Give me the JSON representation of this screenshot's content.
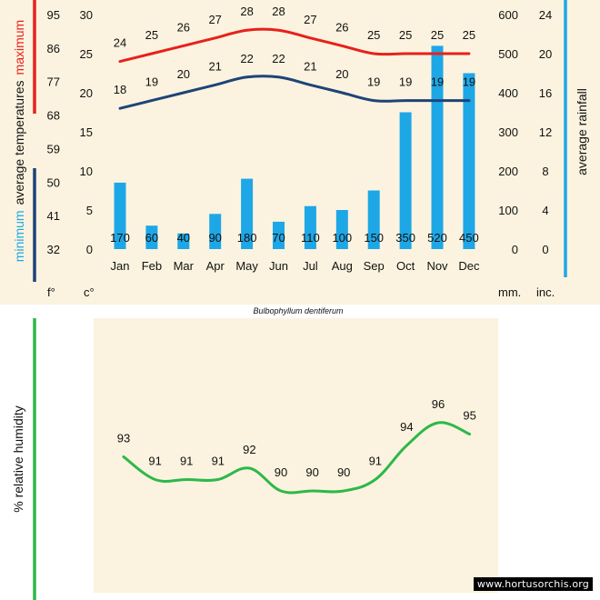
{
  "species": "Bulbophyllum dentiferum",
  "watermark": "www.hortusorchis.org",
  "colors": {
    "background": "#fbf3df",
    "max_line": "#e8201c",
    "min_line": "#1e4378",
    "rainfall_bar": "#1ea7e6",
    "rain_axis_bar": "#1ea7e6",
    "humidity_line": "#2db84a",
    "humidity_axis_bar": "#2db84a"
  },
  "chart_data": [
    {
      "type": "bar",
      "title": "",
      "categories": [
        "Jan",
        "Feb",
        "Mar",
        "Apr",
        "May",
        "Jun",
        "Jul",
        "Aug",
        "Sep",
        "Oct",
        "Nov",
        "Dec"
      ],
      "series": [
        {
          "name": "maximum average temperatures (°C)",
          "kind": "line",
          "axis": "celsius",
          "values": [
            24,
            25,
            26,
            27,
            28,
            28,
            27,
            26,
            25,
            25,
            25,
            25
          ]
        },
        {
          "name": "minimum average temperatures (°C)",
          "kind": "line",
          "axis": "celsius",
          "values": [
            18,
            19,
            20,
            21,
            22,
            22,
            21,
            20,
            19,
            19,
            19,
            19
          ]
        },
        {
          "name": "average rainfall (mm)",
          "kind": "bar",
          "axis": "mm",
          "values": [
            170,
            60,
            40,
            90,
            180,
            70,
            110,
            100,
            150,
            350,
            520,
            450
          ]
        }
      ],
      "axes": {
        "fahrenheit": {
          "unit_label": "f°",
          "ticks": [
            95,
            86,
            77,
            68,
            59,
            50,
            41,
            32
          ]
        },
        "celsius": {
          "unit_label": "c°",
          "ylim": [
            0,
            30
          ],
          "ticks": [
            30,
            25,
            20,
            15,
            10,
            5,
            0
          ]
        },
        "mm": {
          "unit_label": "mm.",
          "ylim": [
            0,
            600
          ],
          "ticks": [
            600,
            500,
            400,
            300,
            200,
            100,
            0
          ]
        },
        "inches": {
          "unit_label": "inc.",
          "ticks": [
            24,
            20,
            16,
            12,
            8,
            4,
            0
          ]
        }
      },
      "ylabel_left_max": "maximum",
      "ylabel_left_mid": "average  temperatures",
      "ylabel_left_min": "minimum",
      "ylabel_right": "average rainfall"
    },
    {
      "type": "line",
      "title": "",
      "categories": [
        "Jan",
        "Feb",
        "Mar",
        "Apr",
        "May",
        "Jun",
        "Jul",
        "Aug",
        "Sep",
        "Oct",
        "Nov",
        "Dec"
      ],
      "series": [
        {
          "name": "% relative humidity",
          "values": [
            93,
            91,
            91,
            91,
            92,
            90,
            90,
            90,
            91,
            94,
            96,
            95
          ]
        }
      ],
      "ylim": [
        88,
        98
      ],
      "ylabel": "%  relative humidity"
    }
  ]
}
